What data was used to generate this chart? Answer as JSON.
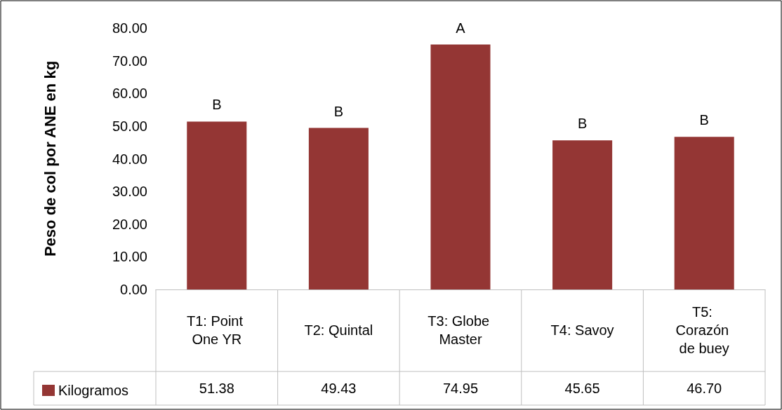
{
  "chart_data": {
    "type": "bar",
    "ylabel": "Peso de col por ANE en kg",
    "categories": [
      "T1: Point One YR",
      "T2: Quintal",
      "T3: Globe Master",
      "T4: Savoy",
      "T5: Corazón de buey"
    ],
    "series": [
      {
        "name": "Kilogramos",
        "color": "#943634",
        "values": [
          51.38,
          49.43,
          74.95,
          45.65,
          46.7
        ],
        "value_labels": [
          "51.38",
          "49.43",
          "74.95",
          "45.65",
          "46.70"
        ]
      }
    ],
    "ylim": [
      0,
      80
    ],
    "yticks": [
      {
        "value": 0,
        "label": "0.00"
      },
      {
        "value": 10,
        "label": "10.00"
      },
      {
        "value": 20,
        "label": "20.00"
      },
      {
        "value": 30,
        "label": "30.00"
      },
      {
        "value": 40,
        "label": "40.00"
      },
      {
        "value": 50,
        "label": "50.00"
      },
      {
        "value": 60,
        "label": "60.00"
      },
      {
        "value": 70,
        "label": "70.00"
      },
      {
        "value": 80,
        "label": "80.00"
      }
    ],
    "annotations": [
      {
        "text": "B",
        "x": "T1: Point One YR",
        "y": 51.38
      },
      {
        "text": "B",
        "x": "T2: Quintal",
        "y": 49.43
      },
      {
        "text": "A",
        "x": "T3: Globe Master",
        "y": 74.95
      },
      {
        "text": "B",
        "x": "T4: Savoy",
        "y": 45.65
      },
      {
        "text": "B",
        "x": "T5: Corazón de buey",
        "y": 46.7
      }
    ],
    "legend": "bottom left",
    "grid": false
  }
}
